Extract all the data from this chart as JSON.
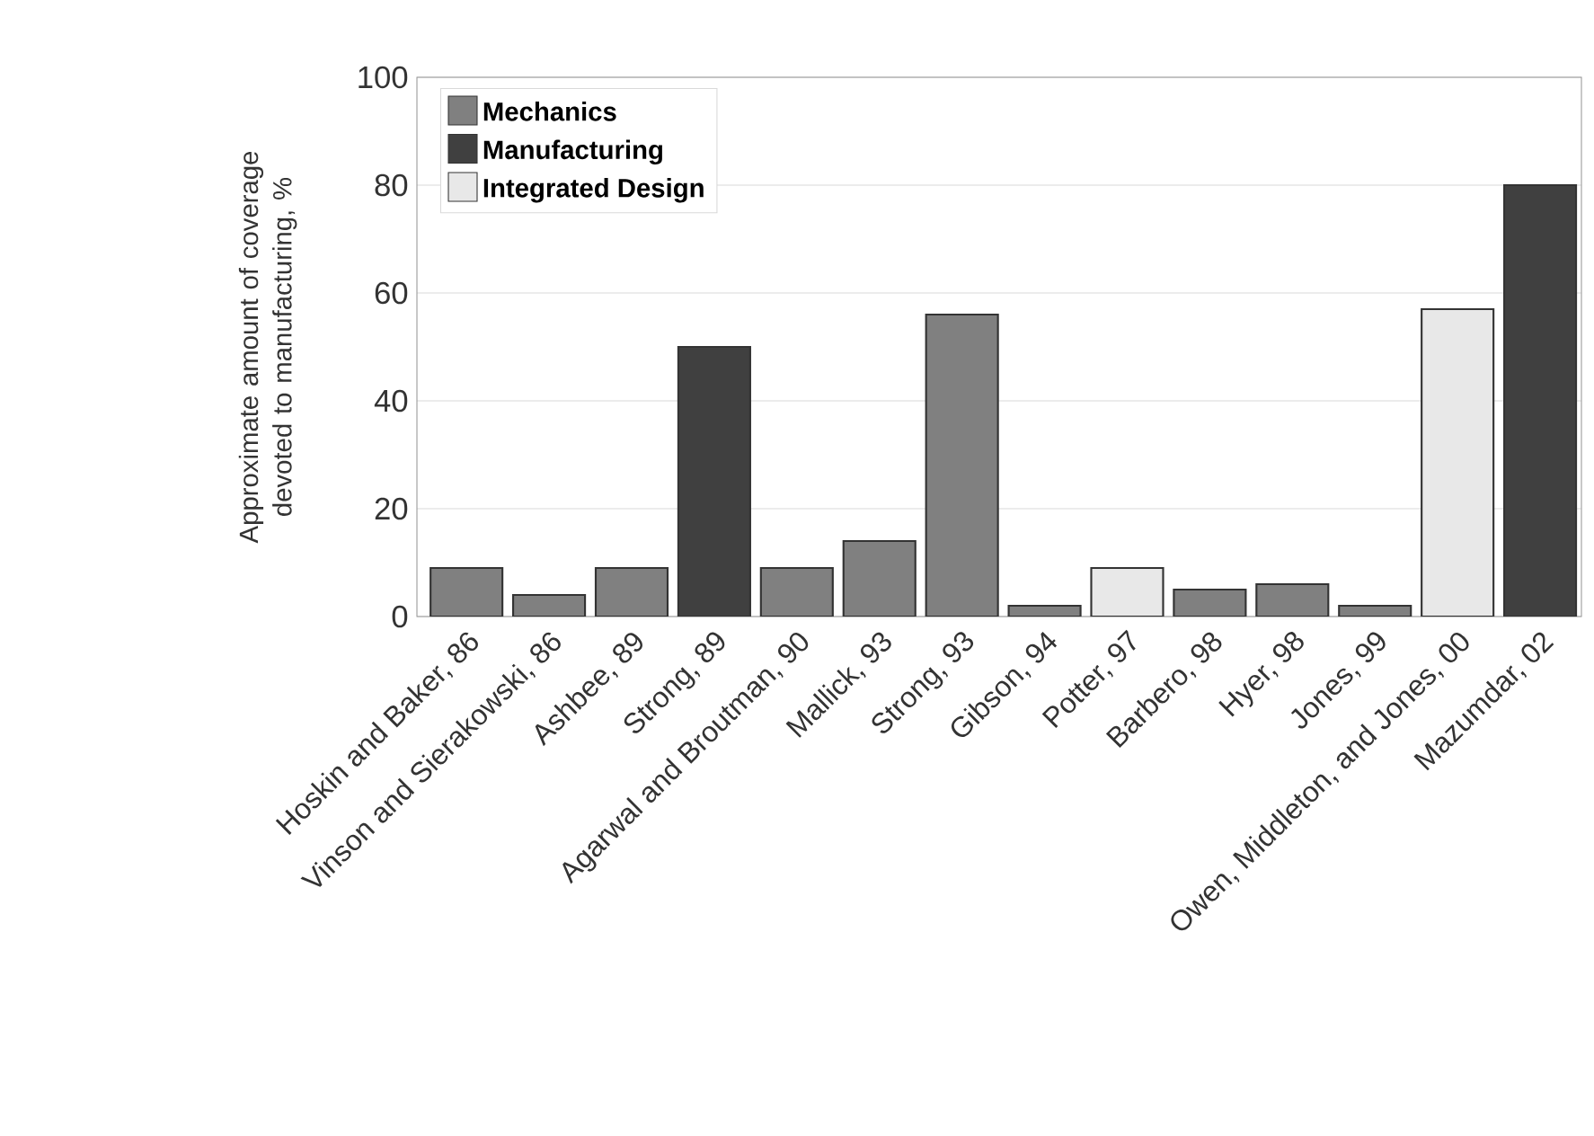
{
  "chart_data": {
    "type": "bar",
    "ylabel": "Approximate amount of coverage devoted to manufacturing, %",
    "categories": [
      "Hoskin and Baker, 86",
      "Vinson and Sierakowski, 86",
      "Ashbee, 89",
      "Strong, 89",
      "Agarwal and Broutman, 90",
      "Mallick, 93",
      "Strong, 93",
      "Gibson, 94",
      "Potter, 97",
      "Barbero, 98",
      "Hyer, 98",
      "Jones, 99",
      "Owen, Middleton, and Jones, 00",
      "Mazumdar, 02"
    ],
    "series": [
      {
        "name": "Mechanics",
        "color": "#808080",
        "values": [
          9,
          4,
          9,
          null,
          9,
          14,
          56,
          2,
          null,
          5,
          6,
          2,
          null,
          null
        ]
      },
      {
        "name": "Manufacturing",
        "color": "#404040",
        "values": [
          null,
          null,
          null,
          50,
          null,
          null,
          null,
          null,
          null,
          null,
          null,
          null,
          null,
          80
        ]
      },
      {
        "name": "Integrated Design",
        "color": "#e8e8e8",
        "values": [
          null,
          null,
          null,
          null,
          null,
          null,
          null,
          null,
          9,
          null,
          null,
          null,
          57,
          null
        ]
      }
    ],
    "ylim": [
      0,
      100
    ],
    "yticks": [
      0,
      20,
      40,
      60,
      80,
      100
    ],
    "grid": "y",
    "legend": "top left"
  }
}
